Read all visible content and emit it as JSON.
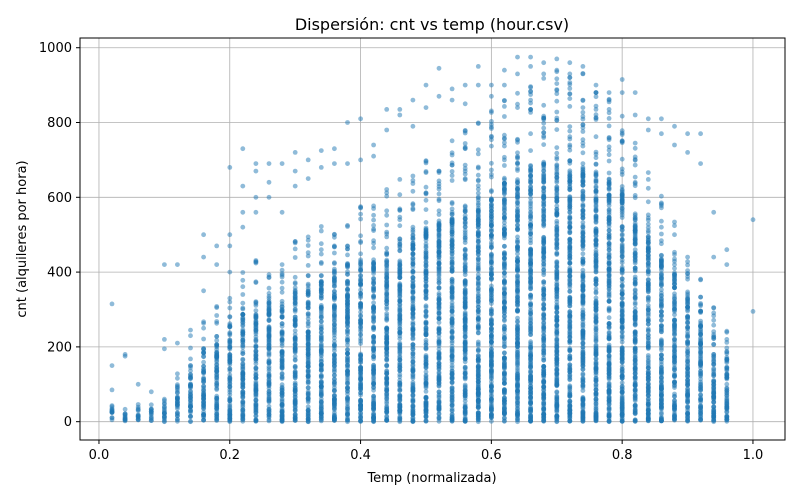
{
  "chart_data": {
    "type": "scatter",
    "title": "Dispersión: cnt vs temp (hour.csv)",
    "xlabel": "Temp (normalizada)",
    "ylabel": "cnt (alquileres por hora)",
    "xlim": [
      -0.029,
      1.049
    ],
    "ylim": [
      -49,
      1026
    ],
    "x_ticks": [
      0.0,
      0.2,
      0.4,
      0.6,
      0.8,
      1.0
    ],
    "x_tick_labels": [
      "0.0",
      "0.2",
      "0.4",
      "0.6",
      "0.8",
      "1.0"
    ],
    "y_ticks": [
      0,
      200,
      400,
      600,
      800,
      1000
    ],
    "y_tick_labels": [
      "0",
      "200",
      "400",
      "600",
      "800",
      "1000"
    ],
    "grid": true,
    "point_color": "#1f77b4",
    "point_alpha": 0.5,
    "x_values": [
      0.02,
      0.04,
      0.06,
      0.08,
      0.1,
      0.12,
      0.14,
      0.16,
      0.18,
      0.2,
      0.22,
      0.24,
      0.26,
      0.28,
      0.3,
      0.32,
      0.34,
      0.36,
      0.38,
      0.4,
      0.42,
      0.44,
      0.46,
      0.48,
      0.5,
      0.52,
      0.54,
      0.56,
      0.58,
      0.6,
      0.62,
      0.64,
      0.66,
      0.68,
      0.7,
      0.72,
      0.74,
      0.76,
      0.78,
      0.8,
      0.82,
      0.84,
      0.86,
      0.88,
      0.9,
      0.92,
      0.94,
      0.96,
      1.0
    ],
    "dense_max": [
      40,
      25,
      40,
      40,
      60,
      100,
      150,
      200,
      230,
      260,
      300,
      320,
      330,
      340,
      360,
      380,
      390,
      410,
      420,
      430,
      440,
      460,
      480,
      500,
      520,
      540,
      560,
      580,
      600,
      620,
      640,
      660,
      680,
      690,
      700,
      700,
      690,
      670,
      650,
      620,
      560,
      500,
      450,
      400,
      350,
      300,
      250,
      200,
      0
    ],
    "outliers": [
      [
        0.02,
        315
      ],
      [
        0.02,
        150
      ],
      [
        0.02,
        85
      ],
      [
        0.04,
        180
      ],
      [
        0.04,
        175
      ],
      [
        0.06,
        100
      ],
      [
        0.08,
        80
      ],
      [
        0.1,
        420
      ],
      [
        0.1,
        220
      ],
      [
        0.1,
        195
      ],
      [
        0.12,
        420
      ],
      [
        0.12,
        210
      ],
      [
        0.14,
        245
      ],
      [
        0.14,
        230
      ],
      [
        0.16,
        500
      ],
      [
        0.16,
        440
      ],
      [
        0.16,
        350
      ],
      [
        0.18,
        470
      ],
      [
        0.18,
        420
      ],
      [
        0.2,
        680
      ],
      [
        0.2,
        500
      ],
      [
        0.2,
        470
      ],
      [
        0.2,
        400
      ],
      [
        0.22,
        730
      ],
      [
        0.22,
        630
      ],
      [
        0.22,
        560
      ],
      [
        0.22,
        520
      ],
      [
        0.24,
        690
      ],
      [
        0.24,
        670
      ],
      [
        0.24,
        600
      ],
      [
        0.24,
        560
      ],
      [
        0.26,
        690
      ],
      [
        0.26,
        640
      ],
      [
        0.26,
        600
      ],
      [
        0.28,
        690
      ],
      [
        0.28,
        560
      ],
      [
        0.3,
        720
      ],
      [
        0.3,
        670
      ],
      [
        0.3,
        630
      ],
      [
        0.32,
        700
      ],
      [
        0.32,
        650
      ],
      [
        0.34,
        725
      ],
      [
        0.34,
        680
      ],
      [
        0.36,
        730
      ],
      [
        0.36,
        690
      ],
      [
        0.38,
        690
      ],
      [
        0.38,
        800
      ],
      [
        0.4,
        810
      ],
      [
        0.4,
        700
      ],
      [
        0.42,
        740
      ],
      [
        0.42,
        710
      ],
      [
        0.44,
        835
      ],
      [
        0.44,
        780
      ],
      [
        0.46,
        835
      ],
      [
        0.46,
        820
      ],
      [
        0.48,
        860
      ],
      [
        0.48,
        790
      ],
      [
        0.5,
        900
      ],
      [
        0.5,
        840
      ],
      [
        0.52,
        945
      ],
      [
        0.52,
        870
      ],
      [
        0.54,
        890
      ],
      [
        0.54,
        860
      ],
      [
        0.56,
        900
      ],
      [
        0.56,
        850
      ],
      [
        0.58,
        950
      ],
      [
        0.58,
        900
      ],
      [
        0.6,
        900
      ],
      [
        0.6,
        870
      ],
      [
        0.62,
        940
      ],
      [
        0.62,
        900
      ],
      [
        0.64,
        975
      ],
      [
        0.64,
        930
      ],
      [
        0.66,
        975
      ],
      [
        0.66,
        950
      ],
      [
        0.68,
        960
      ],
      [
        0.68,
        930
      ],
      [
        0.7,
        970
      ],
      [
        0.7,
        940
      ],
      [
        0.72,
        960
      ],
      [
        0.72,
        920
      ],
      [
        0.74,
        950
      ],
      [
        0.74,
        930
      ],
      [
        0.76,
        900
      ],
      [
        0.76,
        880
      ],
      [
        0.78,
        880
      ],
      [
        0.78,
        860
      ],
      [
        0.8,
        915
      ],
      [
        0.8,
        880
      ],
      [
        0.82,
        880
      ],
      [
        0.82,
        820
      ],
      [
        0.84,
        810
      ],
      [
        0.84,
        780
      ],
      [
        0.86,
        810
      ],
      [
        0.86,
        770
      ],
      [
        0.88,
        790
      ],
      [
        0.88,
        740
      ],
      [
        0.9,
        770
      ],
      [
        0.9,
        720
      ],
      [
        0.92,
        770
      ],
      [
        0.92,
        690
      ],
      [
        0.94,
        560
      ],
      [
        0.94,
        440
      ],
      [
        0.96,
        460
      ],
      [
        0.96,
        420
      ],
      [
        1.0,
        540
      ],
      [
        1.0,
        295
      ]
    ]
  }
}
